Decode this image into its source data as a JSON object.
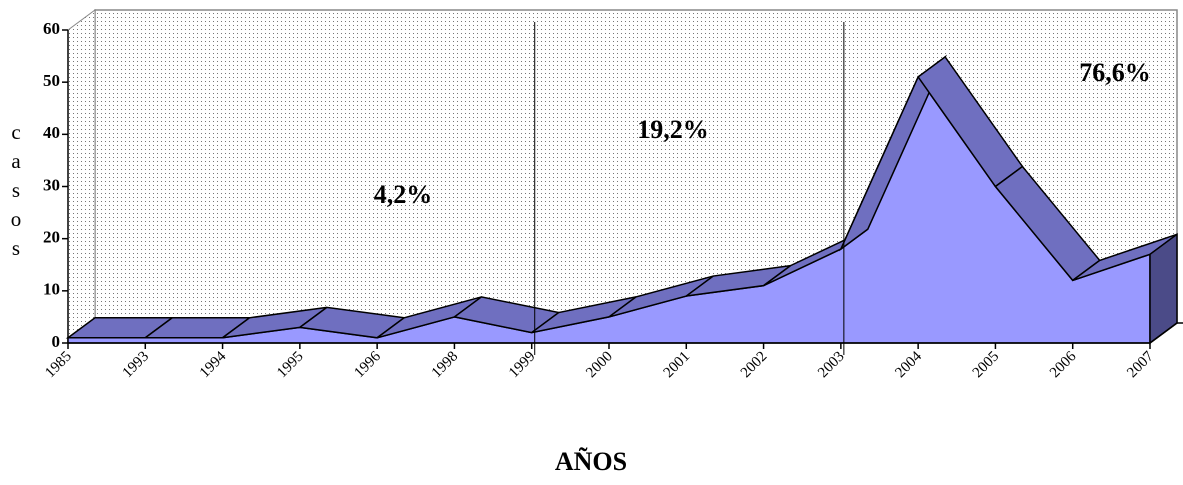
{
  "chart_data": {
    "type": "area3d",
    "categories": [
      "1985",
      "1993",
      "1994",
      "1995",
      "1996",
      "1998",
      "1999",
      "2000",
      "2001",
      "2002",
      "2003",
      "2004",
      "2005",
      "2006",
      "2007"
    ],
    "values": [
      1,
      1,
      1,
      3,
      1,
      5,
      2,
      5,
      9,
      11,
      18,
      51,
      30,
      12,
      17
    ],
    "color": "#9999ff",
    "ylim": [
      0,
      60
    ],
    "yticks": [
      0,
      10,
      20,
      30,
      40,
      50,
      60
    ],
    "y_label": "casos",
    "x_label": "AÑOS",
    "annotations": [
      "4,2%",
      "19,2%",
      "76,6%"
    ]
  }
}
